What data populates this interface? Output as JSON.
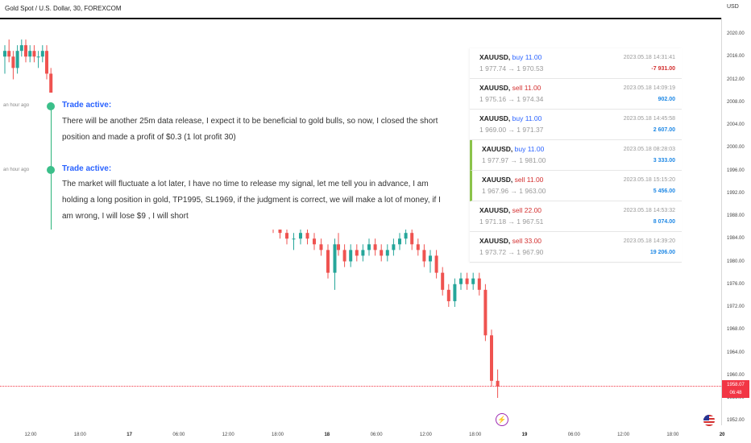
{
  "header": {
    "title": "Gold Spot / U.S. Dollar, 30, FOREXCOM",
    "currency": "USD"
  },
  "price_axis": [
    "2020.00",
    "2016.00",
    "2012.00",
    "2008.00",
    "2004.00",
    "2000.00",
    "1996.00",
    "1992.00",
    "1988.00",
    "1984.00",
    "1980.00",
    "1976.00",
    "1972.00",
    "1968.00",
    "1964.00",
    "1960.00",
    "1956.00",
    "1952.00"
  ],
  "time_axis": [
    {
      "label": "12:00",
      "bold": false
    },
    {
      "label": "18:00",
      "bold": false
    },
    {
      "label": "17",
      "bold": true
    },
    {
      "label": "06:00",
      "bold": false
    },
    {
      "label": "12:00",
      "bold": false
    },
    {
      "label": "18:00",
      "bold": false
    },
    {
      "label": "18",
      "bold": true
    },
    {
      "label": "06:00",
      "bold": false
    },
    {
      "label": "12:00",
      "bold": false
    },
    {
      "label": "18:00",
      "bold": false
    },
    {
      "label": "19",
      "bold": true
    },
    {
      "label": "06:00",
      "bold": false
    },
    {
      "label": "12:00",
      "bold": false
    },
    {
      "label": "18:00",
      "bold": false
    },
    {
      "label": "20",
      "bold": true
    }
  ],
  "current_price": {
    "value": "1958.07",
    "countdown": "06:48"
  },
  "comments": [
    {
      "ago": "an hour ago",
      "heading": "Trade active:",
      "text": "There will be another 25m data release, I expect it to be beneficial to gold bulls, so now, I closed the short position and made a profit of $0.3 (1 lot profit 30)"
    },
    {
      "ago": "an hour ago",
      "heading": "Trade active:",
      "text": "The market will fluctuate a lot later, I have no time to release my signal, let me tell you in advance, I am holding a long position in gold, TP1995, SL1969, if the judgment is correct, we will make a lot of money, if I am wrong, I will lose $9 , I will short"
    }
  ],
  "trades": [
    {
      "symbol": "XAUUSD,",
      "dir": "buy 11.00",
      "side": "buy",
      "date": "2023.05.18 14:31:41",
      "range": "1 977.74 → 1 970.53",
      "profit": "-7 931.00",
      "highlight": false
    },
    {
      "symbol": "XAUUSD,",
      "dir": "sell 11.00",
      "side": "sell",
      "date": "2023.05.18 14:09:19",
      "range": "1 975.16 → 1 974.34",
      "profit": "902.00",
      "highlight": false
    },
    {
      "symbol": "XAUUSD,",
      "dir": "buy 11.00",
      "side": "buy",
      "date": "2023.05.18 14:45:58",
      "range": "1 969.00 → 1 971.37",
      "profit": "2 607.00",
      "highlight": false
    },
    {
      "symbol": "XAUUSD,",
      "dir": "buy 11.00",
      "side": "buy",
      "date": "2023.05.18 08:28:03",
      "range": "1 977.97 → 1 981.00",
      "profit": "3 333.00",
      "highlight": true
    },
    {
      "symbol": "XAUUSD,",
      "dir": "sell 11.00",
      "side": "sell",
      "date": "2023.05.18 15:15:20",
      "range": "1 967.96 → 1 963.00",
      "profit": "5 456.00",
      "highlight": true
    },
    {
      "symbol": "XAUUSD,",
      "dir": "sell 22.00",
      "side": "sell",
      "date": "2023.05.18 14:53:32",
      "range": "1 971.18 → 1 967.51",
      "profit": "8 074.00",
      "highlight": false
    },
    {
      "symbol": "XAUUSD,",
      "dir": "sell 33.00",
      "side": "sell",
      "date": "2023.05.18 14:39:20",
      "range": "1 973.72 → 1 967.90",
      "profit": "19 206.00",
      "highlight": false
    }
  ],
  "colors": {
    "up": "#26a69a",
    "down": "#ef5350",
    "buy": "#2962ff",
    "sell": "#d32f2f",
    "profit_pos": "#1e88e5",
    "profit_neg": "#d32f2f",
    "accent": "#2962ff"
  },
  "icons": {
    "bolt": "lightning-icon",
    "flag": "us-flag-icon"
  },
  "candles": [
    [
      2016,
      2018,
      2013,
      2017
    ],
    [
      2017,
      2019,
      2015,
      2016
    ],
    [
      2016,
      2017,
      2012,
      2014
    ],
    [
      2014,
      2018,
      2013,
      2017
    ],
    [
      2017,
      2019,
      2016,
      2018
    ],
    [
      2018,
      2019,
      2015,
      2016
    ],
    [
      2016,
      2018,
      2015,
      2017
    ],
    [
      2017,
      2018,
      2015,
      2016
    ],
    [
      2016,
      2017,
      2014,
      2016
    ],
    [
      2016,
      2018,
      2015,
      2017
    ],
    [
      2017,
      2018,
      2012,
      2013
    ],
    [
      2013,
      2014,
      2008,
      2009
    ],
    [
      2003,
      2003,
      1994,
      1994
    ],
    [
      1994,
      1996,
      1993,
      1995
    ],
    [
      1995,
      1997,
      1994,
      1996
    ],
    [
      1996,
      1997,
      1993,
      1994
    ],
    [
      1994,
      1995,
      1992,
      1993
    ],
    [
      1993,
      1994,
      1991,
      1992
    ],
    [
      1992,
      1994,
      1991,
      1993
    ],
    [
      1993,
      1995,
      1992,
      1994
    ],
    [
      1994,
      1995,
      1992,
      1993
    ],
    [
      1993,
      1994,
      1990,
      1991
    ],
    [
      1991,
      1993,
      1990,
      1992
    ],
    [
      1992,
      1993,
      1989,
      1990
    ],
    [
      1990,
      1991,
      1988,
      1989
    ],
    [
      1989,
      1990,
      1987,
      1988
    ],
    [
      1988,
      1989,
      1986,
      1987
    ],
    [
      1987,
      1988,
      1985,
      1986
    ],
    [
      1986,
      1987,
      1984,
      1985
    ],
    [
      1985,
      1986,
      1983,
      1984
    ],
    [
      1984,
      1985,
      1982,
      1984
    ],
    [
      1984,
      1986,
      1983,
      1985
    ],
    [
      1985,
      1986,
      1983,
      1984
    ],
    [
      1984,
      1985,
      1982,
      1983
    ],
    [
      1983,
      1984,
      1981,
      1982
    ],
    [
      1982,
      1983,
      1977,
      1978
    ],
    [
      1978,
      1984,
      1975,
      1983
    ],
    [
      1983,
      1985,
      1981,
      1982
    ],
    [
      1982,
      1983,
      1979,
      1980
    ],
    [
      1980,
      1983,
      1979,
      1982
    ],
    [
      1982,
      1983,
      1980,
      1981
    ],
    [
      1981,
      1983,
      1980,
      1982
    ],
    [
      1982,
      1984,
      1981,
      1983
    ],
    [
      1983,
      1984,
      1981,
      1982
    ],
    [
      1982,
      1983,
      1980,
      1981
    ],
    [
      1981,
      1983,
      1980,
      1982
    ],
    [
      1982,
      1984,
      1981,
      1983
    ],
    [
      1983,
      1985,
      1982,
      1984
    ],
    [
      1984,
      1986,
      1983,
      1985
    ],
    [
      1985,
      1986,
      1982,
      1983
    ],
    [
      1983,
      1984,
      1981,
      1982
    ],
    [
      1982,
      1983,
      1979,
      1980
    ],
    [
      1980,
      1982,
      1978,
      1981
    ],
    [
      1981,
      1982,
      1977,
      1978
    ],
    [
      1978,
      1979,
      1974,
      1975
    ],
    [
      1975,
      1976,
      1972,
      1973
    ],
    [
      1973,
      1977,
      1972,
      1976
    ],
    [
      1976,
      1978,
      1975,
      1977
    ],
    [
      1977,
      1978,
      1975,
      1976
    ],
    [
      1976,
      1978,
      1975,
      1977
    ],
    [
      1977,
      1978,
      1974,
      1975
    ],
    [
      1975,
      1976,
      1966,
      1967
    ],
    [
      1967,
      1968,
      1958,
      1959
    ],
    [
      1959,
      1961,
      1956,
      1958
    ]
  ]
}
